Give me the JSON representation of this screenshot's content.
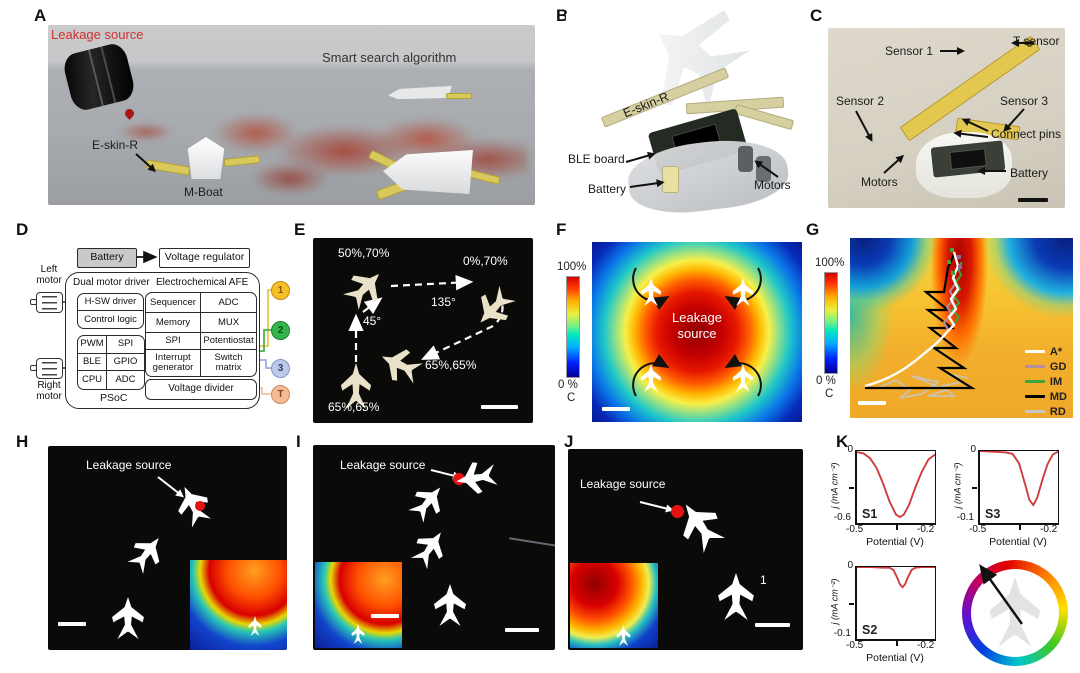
{
  "letters": {
    "A": "A",
    "B": "B",
    "C": "C",
    "D": "D",
    "E": "E",
    "F": "F",
    "G": "G",
    "H": "H",
    "I": "I",
    "J": "J",
    "K": "K"
  },
  "panels": {
    "A": {
      "leakage_source": "Leakage source",
      "smart_search": "Smart search algorithm",
      "eskin": "E-skin-R",
      "mboat": "M-Boat"
    },
    "B": {
      "eskin": "E-skin-R",
      "ble_board": "BLE board",
      "battery": "Battery",
      "motors": "Motors"
    },
    "C": {
      "sensor1": "Sensor 1",
      "t_sensor": "T sensor",
      "sensor2": "Sensor 2",
      "sensor3": "Sensor 3",
      "connect_pins": "Connect pins",
      "motors": "Motors",
      "battery": "Battery"
    },
    "D": {
      "battery": "Battery",
      "voltage_regulator": "Voltage regulator",
      "left_motor": "Left motor",
      "right_motor": "Right motor",
      "dual_motor_driver": "Dual motor driver",
      "hsw_driver": "H-SW driver",
      "control_logic": "Control logic",
      "pwm": "PWM",
      "spi": "SPI",
      "ble": "BLE",
      "gpio": "GPIO",
      "cpu": "CPU",
      "adc": "ADC",
      "psoc": "PSoC",
      "afe": "Electrochemical AFE",
      "sequencer": "Sequencer",
      "adc2": "ADC",
      "memory": "Memory",
      "mux": "MUX",
      "spi2": "SPI",
      "potentiostat": "Potentiostat",
      "interrupt_generator": "Interrupt generator",
      "switch_matrix": "Switch matrix",
      "voltage_divider": "Voltage divider",
      "nodes": [
        {
          "label": "1",
          "fill": "#f5c02a",
          "border": "#c8860a",
          "text": "#8a5600"
        },
        {
          "label": "2",
          "fill": "#35b44b",
          "border": "#1e7e30",
          "text": "#0c4d18"
        },
        {
          "label": "3",
          "fill": "#bdc9ea",
          "border": "#8696c4",
          "text": "#333f68"
        },
        {
          "label": "T",
          "fill": "#f4ba93",
          "border": "#c98a5e",
          "text": "#87431a"
        }
      ]
    },
    "E": {
      "p1": "50%,70%",
      "p2": "0%,70%",
      "a1": "45°",
      "a2": "135°",
      "p3": "65%,65%",
      "p4": "65%,65%"
    },
    "F": {
      "cb_top": "100%",
      "cb_bottom": "0 %",
      "cb_unit": "C",
      "center_line1": "Leakage",
      "center_line2": "source"
    },
    "G": {
      "cb_top": "100%",
      "cb_bottom": "0 %",
      "cb_unit": "C",
      "legend": [
        {
          "name": "A*",
          "color": "#ffffff"
        },
        {
          "name": "GD",
          "color": "#b38e9e"
        },
        {
          "name": "IM",
          "color": "#3fa43f"
        },
        {
          "name": "MD",
          "color": "#000000"
        },
        {
          "name": "RD",
          "color": "#c6c6c6"
        }
      ]
    },
    "H": {
      "leakage": "Leakage source"
    },
    "I": {
      "leakage": "Leakage source"
    },
    "J": {
      "leakage": "Leakage source",
      "boat_number": "1"
    }
  },
  "chart_data": [
    {
      "type": "line",
      "title": "S1",
      "xlabel": "Potential (V)",
      "ylabel": "j (mA cm⁻²)",
      "xlim": [
        -0.5,
        -0.2
      ],
      "ylim": [
        -0.6,
        0
      ],
      "x_ticks": [
        "-0.5",
        "-0.2"
      ],
      "y_ticks": [
        "0",
        "-0.6"
      ],
      "line_color": "#d03c3c",
      "grid": false,
      "x": [
        -0.5,
        -0.475,
        -0.45,
        -0.425,
        -0.4,
        -0.375,
        -0.35,
        -0.335,
        -0.32,
        -0.3,
        -0.275,
        -0.25,
        -0.225,
        -0.2
      ],
      "y": [
        -0.01,
        -0.02,
        -0.06,
        -0.14,
        -0.27,
        -0.42,
        -0.53,
        -0.55,
        -0.53,
        -0.45,
        -0.3,
        -0.17,
        -0.07,
        -0.03
      ]
    },
    {
      "type": "line",
      "title": "S3",
      "xlabel": "Potential (V)",
      "ylabel": "j (mA cm⁻²)",
      "xlim": [
        -0.5,
        -0.2
      ],
      "ylim": [
        -0.1,
        0
      ],
      "x_ticks": [
        "-0.5",
        "-0.2"
      ],
      "y_ticks": [
        "0",
        "-0.1"
      ],
      "line_color": "#d03c3c",
      "grid": false,
      "x": [
        -0.5,
        -0.45,
        -0.4,
        -0.375,
        -0.35,
        -0.325,
        -0.31,
        -0.295,
        -0.28,
        -0.26,
        -0.24,
        -0.22,
        -0.2
      ],
      "y": [
        0,
        -0.001,
        -0.002,
        -0.004,
        -0.017,
        -0.048,
        -0.068,
        -0.075,
        -0.065,
        -0.04,
        -0.018,
        -0.005,
        -0.001
      ]
    },
    {
      "type": "line",
      "title": "S2",
      "xlabel": "Potential (V)",
      "ylabel": "j (mA cm⁻²)",
      "xlim": [
        -0.5,
        -0.2
      ],
      "ylim": [
        -0.1,
        0
      ],
      "x_ticks": [
        "-0.5",
        "-0.2"
      ],
      "y_ticks": [
        "0",
        "-0.1"
      ],
      "line_color": "#d03c3c",
      "grid": false,
      "x": [
        -0.5,
        -0.45,
        -0.4,
        -0.375,
        -0.36,
        -0.345,
        -0.335,
        -0.325,
        -0.315,
        -0.305,
        -0.29,
        -0.275,
        -0.25,
        -0.2
      ],
      "y": [
        0,
        0,
        -0.001,
        -0.001,
        -0.004,
        -0.015,
        -0.024,
        -0.028,
        -0.024,
        -0.015,
        -0.004,
        -0.001,
        0,
        0
      ]
    }
  ]
}
